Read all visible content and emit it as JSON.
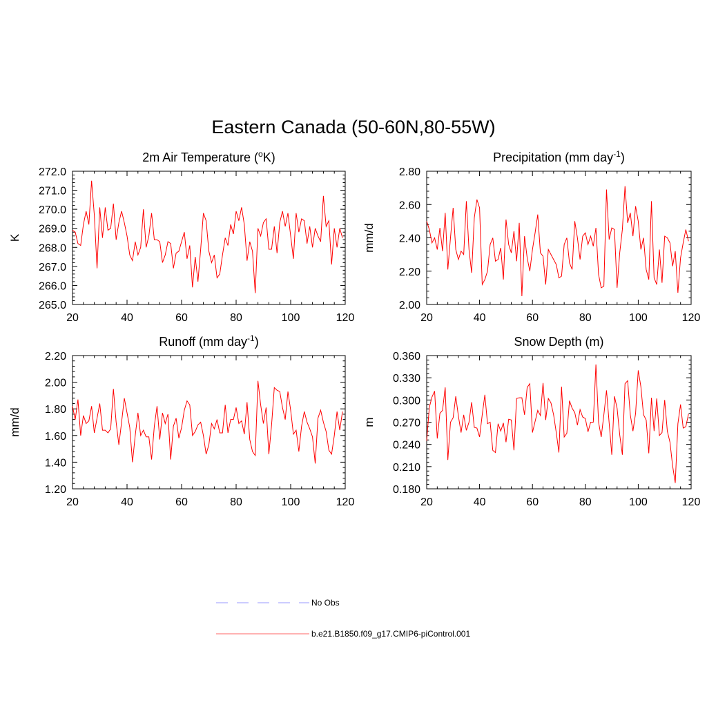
{
  "title": "Eastern Canada (50-60N,80-55W)",
  "legend": [
    {
      "label": "No Obs",
      "color": "#9999ff",
      "dash": "dashed"
    },
    {
      "label": "b.e21.B1850.f09_g17.CMIP6-piControl.001",
      "color": "#ff6666",
      "dash": "solid"
    }
  ],
  "colors": {
    "series": "#ff0000"
  },
  "chart_data": [
    {
      "type": "line",
      "title_main": "2m Air Temperature (",
      "title_sup": "o",
      "title_tail": "K)",
      "ylabel": "K",
      "xlim": [
        20,
        120
      ],
      "xticks": [
        "20",
        "40",
        "60",
        "80",
        "100",
        "120"
      ],
      "ylim": [
        265,
        272
      ],
      "yticks": [
        "265.0",
        "266.0",
        "267.0",
        "268.0",
        "269.0",
        "270.0",
        "271.0",
        "272.0"
      ],
      "x_start": 20,
      "values": [
        268.9,
        268.8,
        268.2,
        268.1,
        269.2,
        269.9,
        269.2,
        271.5,
        269.7,
        266.9,
        270.1,
        268.5,
        270.1,
        268.9,
        269.0,
        270.3,
        268.4,
        269.3,
        269.9,
        269.3,
        268.6,
        267.6,
        267.3,
        268.3,
        267.6,
        268.0,
        270.0,
        268.0,
        268.6,
        269.8,
        268.4,
        268.4,
        268.3,
        267.2,
        267.6,
        268.3,
        268.2,
        266.9,
        267.7,
        267.8,
        268.3,
        268.8,
        267.4,
        268.1,
        265.9,
        267.5,
        266.2,
        267.9,
        269.8,
        269.4,
        267.8,
        267.2,
        267.6,
        266.4,
        266.6,
        267.6,
        268.5,
        268.1,
        269.2,
        268.7,
        269.9,
        269.4,
        270.1,
        269.2,
        267.3,
        268.3,
        267.8,
        265.6,
        269.0,
        268.6,
        269.3,
        269.5,
        267.9,
        267.9,
        269.1,
        267.7,
        269.3,
        269.9,
        269.1,
        269.8,
        268.6,
        267.4,
        269.8,
        268.8,
        269.5,
        269.4,
        268.2,
        269.1,
        268.0,
        269.0,
        268.6,
        268.3,
        270.7,
        269.1,
        269.4,
        267.1,
        269.0,
        268.0,
        269.0,
        268.5
      ]
    },
    {
      "type": "line",
      "title_main": "Precipitation (mm day",
      "title_sup": "-1",
      "title_tail": ")",
      "ylabel": "mm/d",
      "xlim": [
        20,
        120
      ],
      "xticks": [
        "20",
        "40",
        "60",
        "80",
        "100",
        "120"
      ],
      "ylim": [
        2.0,
        2.8
      ],
      "yticks": [
        "2.00",
        "2.20",
        "2.40",
        "2.60",
        "2.80"
      ],
      "x_start": 20,
      "values": [
        2.5,
        2.45,
        2.37,
        2.4,
        2.33,
        2.46,
        2.32,
        2.55,
        2.21,
        2.4,
        2.58,
        2.33,
        2.27,
        2.32,
        2.3,
        2.62,
        2.33,
        2.19,
        2.52,
        2.63,
        2.58,
        2.12,
        2.15,
        2.2,
        2.36,
        2.4,
        2.26,
        2.27,
        2.34,
        2.15,
        2.51,
        2.36,
        2.31,
        2.44,
        2.26,
        2.49,
        2.05,
        2.41,
        2.28,
        2.2,
        2.33,
        2.43,
        2.54,
        2.31,
        2.29,
        2.12,
        2.33,
        2.3,
        2.27,
        2.24,
        2.16,
        2.17,
        2.36,
        2.4,
        2.25,
        2.21,
        2.5,
        2.4,
        2.27,
        2.41,
        2.43,
        2.36,
        2.41,
        2.35,
        2.46,
        2.18,
        2.1,
        2.11,
        2.69,
        2.39,
        2.46,
        2.45,
        2.1,
        2.31,
        2.45,
        2.71,
        2.49,
        2.55,
        2.41,
        2.59,
        2.5,
        2.33,
        2.4,
        2.21,
        2.15,
        2.62,
        2.16,
        2.12,
        2.33,
        2.13,
        2.41,
        2.4,
        2.37,
        2.23,
        2.32,
        2.07,
        2.28,
        2.37,
        2.45,
        2.38
      ]
    },
    {
      "type": "line",
      "title_main": "Runoff (mm day",
      "title_sup": "-1",
      "title_tail": ")",
      "ylabel": "mm/d",
      "xlim": [
        20,
        120
      ],
      "xticks": [
        "20",
        "40",
        "60",
        "80",
        "100",
        "120"
      ],
      "ylim": [
        1.2,
        2.2
      ],
      "yticks": [
        "1.20",
        "1.40",
        "1.60",
        "1.80",
        "2.00",
        "2.20"
      ],
      "x_start": 20,
      "values": [
        1.82,
        1.72,
        1.87,
        1.6,
        1.75,
        1.69,
        1.71,
        1.82,
        1.62,
        1.73,
        1.84,
        1.64,
        1.64,
        1.62,
        1.65,
        1.95,
        1.7,
        1.53,
        1.7,
        1.88,
        1.77,
        1.66,
        1.4,
        1.6,
        1.77,
        1.6,
        1.64,
        1.59,
        1.59,
        1.42,
        1.67,
        1.82,
        1.57,
        1.77,
        1.69,
        1.76,
        1.42,
        1.67,
        1.73,
        1.58,
        1.66,
        1.79,
        1.86,
        1.83,
        1.6,
        1.63,
        1.68,
        1.7,
        1.6,
        1.46,
        1.53,
        1.69,
        1.65,
        1.72,
        1.62,
        1.62,
        1.83,
        1.62,
        1.72,
        1.72,
        1.81,
        1.69,
        1.71,
        1.61,
        1.85,
        1.57,
        1.48,
        1.45,
        2.01,
        1.83,
        1.69,
        1.81,
        1.46,
        1.68,
        1.96,
        1.94,
        1.93,
        1.81,
        1.72,
        1.93,
        1.79,
        1.61,
        1.64,
        1.48,
        1.67,
        1.78,
        1.7,
        1.65,
        1.59,
        1.39,
        1.73,
        1.79,
        1.7,
        1.63,
        1.49,
        1.46,
        1.6,
        1.78,
        1.64,
        1.78
      ]
    },
    {
      "type": "line",
      "title_main": "Snow Depth (m)",
      "title_sup": "",
      "title_tail": "",
      "ylabel": "m",
      "xlim": [
        20,
        120
      ],
      "xticks": [
        "20",
        "40",
        "60",
        "80",
        "100",
        "120"
      ],
      "ylim": [
        0.18,
        0.36
      ],
      "yticks": [
        "0.180",
        "0.210",
        "0.240",
        "0.270",
        "0.300",
        "0.330",
        "0.360"
      ],
      "x_start": 20,
      "values": [
        0.245,
        0.29,
        0.304,
        0.312,
        0.248,
        0.282,
        0.286,
        0.317,
        0.219,
        0.27,
        0.276,
        0.305,
        0.278,
        0.256,
        0.28,
        0.259,
        0.27,
        0.297,
        0.263,
        0.262,
        0.25,
        0.28,
        0.307,
        0.268,
        0.27,
        0.232,
        0.229,
        0.268,
        0.258,
        0.269,
        0.243,
        0.274,
        0.273,
        0.232,
        0.302,
        0.303,
        0.303,
        0.28,
        0.317,
        0.322,
        0.256,
        0.271,
        0.286,
        0.279,
        0.323,
        0.273,
        0.302,
        0.296,
        0.28,
        0.256,
        0.229,
        0.318,
        0.25,
        0.255,
        0.299,
        0.289,
        0.283,
        0.266,
        0.287,
        0.277,
        0.275,
        0.257,
        0.27,
        0.27,
        0.348,
        0.27,
        0.25,
        0.28,
        0.313,
        0.269,
        0.226,
        0.305,
        0.289,
        0.253,
        0.226,
        0.322,
        0.326,
        0.28,
        0.258,
        0.282,
        0.34,
        0.318,
        0.28,
        0.273,
        0.228,
        0.303,
        0.258,
        0.302,
        0.252,
        0.256,
        0.3,
        0.258,
        0.243,
        0.211,
        0.188,
        0.268,
        0.294,
        0.262,
        0.264,
        0.281
      ]
    }
  ]
}
